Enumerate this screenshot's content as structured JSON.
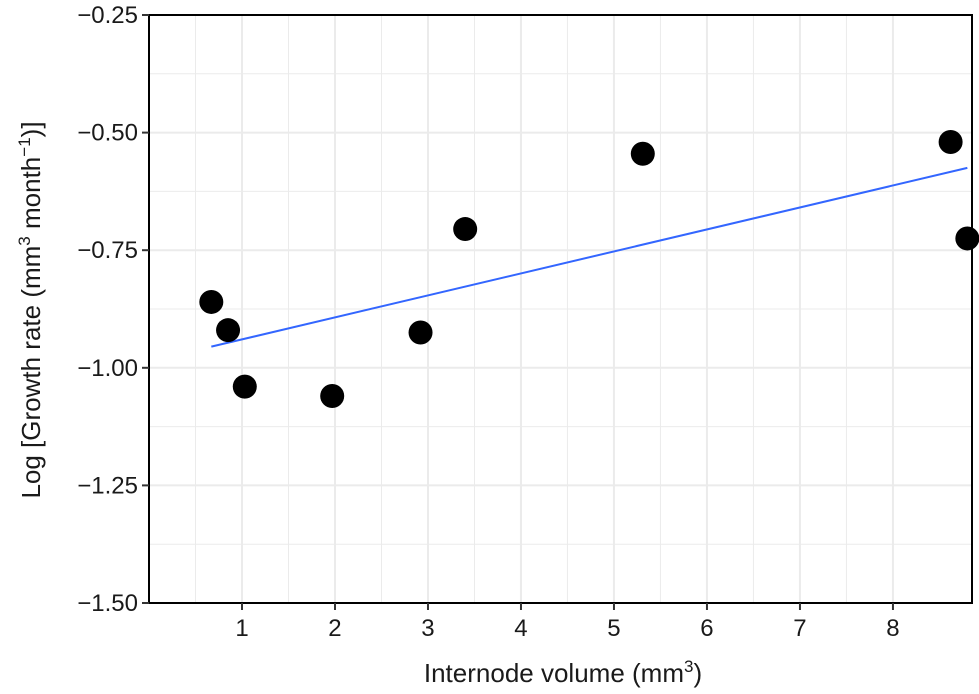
{
  "chart_data": {
    "type": "scatter",
    "title": "",
    "xlabel": {
      "prefix": "Internode volume (mm",
      "sup": "3",
      "suffix": ")"
    },
    "ylabel": {
      "prefix": "Log [Growth rate (mm",
      "sup1": "3",
      "mid": " month",
      "sup2": "−1",
      "suffix": ")]"
    },
    "xlim": [
      0.0,
      8.85
    ],
    "ylim": [
      -1.5,
      -0.25
    ],
    "x_ticks": [
      1,
      2,
      3,
      4,
      5,
      6,
      7,
      8
    ],
    "x_tick_labels": [
      "1",
      "2",
      "3",
      "4",
      "5",
      "6",
      "7",
      "8"
    ],
    "y_ticks": [
      -1.5,
      -1.25,
      -1.0,
      -0.75,
      -0.5,
      -0.25
    ],
    "y_tick_labels": [
      "−1.50",
      "−1.25",
      "−1.00",
      "−0.75",
      "−0.50",
      "−0.25"
    ],
    "grid": true,
    "points": [
      {
        "x": 0.67,
        "y": -0.86
      },
      {
        "x": 0.85,
        "y": -0.92
      },
      {
        "x": 1.03,
        "y": -1.04
      },
      {
        "x": 1.97,
        "y": -1.06
      },
      {
        "x": 2.92,
        "y": -0.925
      },
      {
        "x": 3.4,
        "y": -0.705
      },
      {
        "x": 5.31,
        "y": -0.545
      },
      {
        "x": 8.62,
        "y": -0.52
      },
      {
        "x": 8.8,
        "y": -0.725
      }
    ],
    "fit_line": {
      "x": [
        0.67,
        8.8
      ],
      "y": [
        -0.955,
        -0.575
      ],
      "color": "#3366ff"
    },
    "point_color": "#000000",
    "grid_color": "#ebebeb"
  }
}
